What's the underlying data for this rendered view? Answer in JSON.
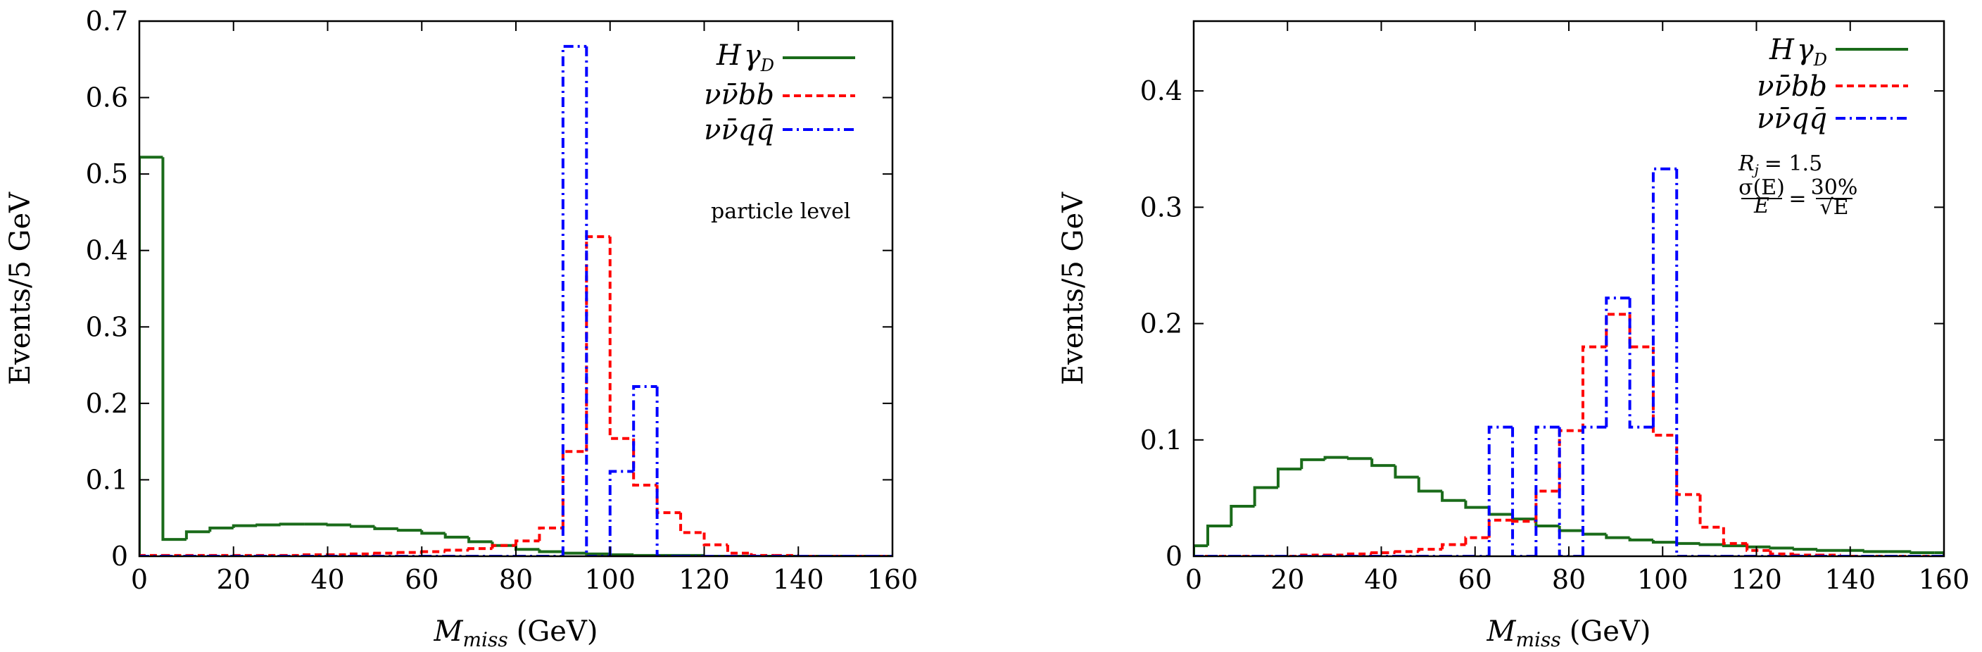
{
  "chart_data": [
    {
      "type": "histogram",
      "title": "",
      "xlabel": "M_miss (GeV)",
      "xlabel_main": "M",
      "xlabel_sub": "miss",
      "xlabel_unit": "(GeV)",
      "ylabel": "Events/5 GeV",
      "xlim": [
        0,
        160
      ],
      "ylim": [
        0,
        0.7
      ],
      "xticks": [
        0,
        20,
        40,
        60,
        80,
        100,
        120,
        140,
        160
      ],
      "yticks": [
        0,
        0.1,
        0.2,
        0.3,
        0.4,
        0.5,
        0.6,
        0.7
      ],
      "xtick_labels": [
        "0",
        "20",
        "40",
        "60",
        "80",
        "100",
        "120",
        "140",
        "160"
      ],
      "ytick_labels": [
        "0",
        "0.1",
        "0.2",
        "0.3",
        "0.4",
        "0.5",
        "0.6",
        "0.7"
      ],
      "annotation": "particle level",
      "bin_edges": [
        0,
        5,
        10,
        15,
        20,
        25,
        30,
        35,
        40,
        45,
        50,
        55,
        60,
        65,
        70,
        75,
        80,
        85,
        90,
        95,
        100,
        105,
        110,
        115,
        120,
        125,
        130,
        135,
        140,
        145,
        150,
        155,
        160
      ],
      "series": [
        {
          "name": "Hγ_D",
          "legend_main": "H",
          "legend_greek": "γ",
          "legend_sub": "D",
          "color": "#1a6b1a",
          "style": "solid",
          "values": [
            0.522,
            0.022,
            0.032,
            0.037,
            0.04,
            0.041,
            0.042,
            0.042,
            0.041,
            0.039,
            0.036,
            0.034,
            0.03,
            0.025,
            0.019,
            0.014,
            0.009,
            0.006,
            0.004,
            0.003,
            0.002,
            0.001,
            0.001,
            0.001,
            0,
            0,
            0,
            0,
            0,
            0,
            0,
            0
          ]
        },
        {
          "name": "νν̄bb",
          "legend_text": "νν̄bb",
          "color": "#ff0000",
          "style": "dashed",
          "values": [
            0.001,
            0.001,
            0.001,
            0.001,
            0.001,
            0.001,
            0.001,
            0.002,
            0.002,
            0.003,
            0.004,
            0.005,
            0.006,
            0.008,
            0.01,
            0.014,
            0.02,
            0.037,
            0.137,
            0.418,
            0.154,
            0.093,
            0.057,
            0.031,
            0.015,
            0.004,
            0.001,
            0.001,
            0,
            0,
            0,
            0
          ]
        },
        {
          "name": "νν̄qq̄",
          "legend_text": "νν̄qq̄",
          "color": "#0000ff",
          "style": "dashdot",
          "values": [
            0,
            0,
            0,
            0,
            0,
            0,
            0,
            0,
            0,
            0,
            0,
            0,
            0,
            0,
            0,
            0,
            0,
            0,
            0.667,
            0,
            0.111,
            0.222,
            0,
            0,
            0,
            0,
            0,
            0,
            0,
            0,
            0,
            0
          ]
        }
      ]
    },
    {
      "type": "histogram",
      "title": "",
      "xlabel": "M_miss (GeV)",
      "xlabel_main": "M",
      "xlabel_sub": "miss",
      "xlabel_unit": "(GeV)",
      "ylabel": "Events/5 GeV",
      "xlim": [
        0,
        160
      ],
      "ylim": [
        0,
        0.46
      ],
      "xticks": [
        0,
        20,
        40,
        60,
        80,
        100,
        120,
        140,
        160
      ],
      "yticks": [
        0,
        0.1,
        0.2,
        0.3,
        0.4
      ],
      "xtick_labels": [
        "0",
        "20",
        "40",
        "60",
        "80",
        "100",
        "120",
        "140",
        "160"
      ],
      "ytick_labels": [
        "0",
        "0.1",
        "0.2",
        "0.3",
        "0.4"
      ],
      "annotation_rj": "R",
      "annotation_rj_sub": "j",
      "annotation_rj_value": "= 1.5",
      "annotation_res_num": "σ(E)",
      "annotation_res_den": "E",
      "annotation_res_eq": "=",
      "annotation_res_rnum": "30%",
      "annotation_res_rden": "√E",
      "bin_edges": [
        -2,
        3,
        8,
        13,
        18,
        23,
        28,
        33,
        38,
        43,
        48,
        53,
        58,
        63,
        68,
        73,
        78,
        83,
        88,
        93,
        98,
        103,
        108,
        113,
        118,
        123,
        128,
        133,
        138,
        143,
        148,
        153,
        158,
        160
      ],
      "series": [
        {
          "name": "Hγ_D",
          "legend_main": "H",
          "legend_greek": "γ",
          "legend_sub": "D",
          "color": "#1a6b1a",
          "style": "solid",
          "values": [
            0.009,
            0.026,
            0.043,
            0.059,
            0.075,
            0.083,
            0.085,
            0.084,
            0.078,
            0.068,
            0.056,
            0.048,
            0.042,
            0.036,
            0.032,
            0.026,
            0.022,
            0.019,
            0.016,
            0.014,
            0.012,
            0.011,
            0.01,
            0.009,
            0.008,
            0.007,
            0.006,
            0.005,
            0.005,
            0.004,
            0.004,
            0.003,
            0.003
          ]
        },
        {
          "name": "νν̄bb",
          "legend_text": "νν̄bb",
          "color": "#ff0000",
          "style": "dashed",
          "values": [
            0,
            0,
            0,
            0,
            0,
            0.001,
            0.001,
            0.002,
            0.003,
            0.004,
            0.006,
            0.01,
            0.016,
            0.031,
            0.03,
            0.056,
            0.108,
            0.18,
            0.208,
            0.18,
            0.104,
            0.053,
            0.025,
            0.011,
            0.005,
            0.002,
            0.001,
            0.001,
            0,
            0,
            0,
            0,
            0
          ]
        },
        {
          "name": "νν̄qq̄",
          "legend_text": "νν̄qq̄",
          "color": "#0000ff",
          "style": "dashdot",
          "values": [
            0,
            0,
            0,
            0,
            0,
            0,
            0,
            0,
            0,
            0,
            0,
            0,
            0,
            0.111,
            0,
            0.111,
            0,
            0.111,
            0.222,
            0.111,
            0.333,
            0,
            0,
            0,
            0,
            0,
            0,
            0,
            0,
            0,
            0,
            0,
            0
          ]
        }
      ]
    }
  ]
}
